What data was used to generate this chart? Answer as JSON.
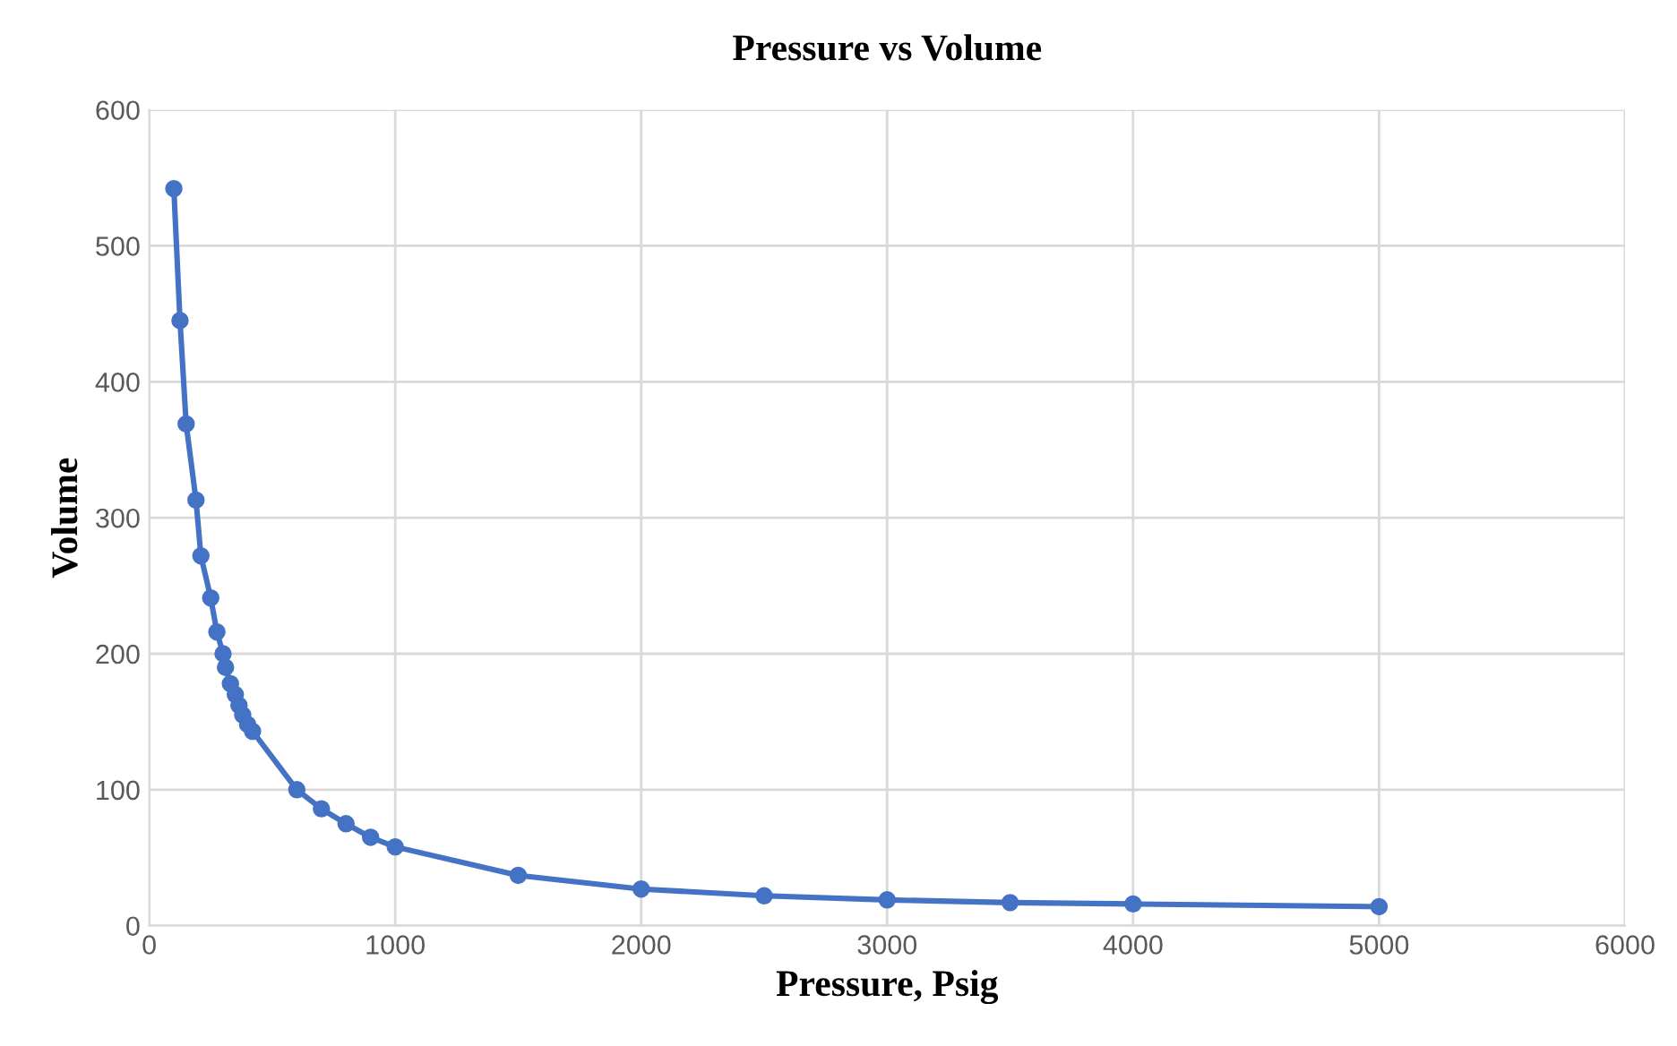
{
  "chart_data": {
    "type": "line",
    "title": "Pressure vs Volume",
    "xlabel": "Pressure, Psig",
    "ylabel": "Volume",
    "x": [
      100,
      125,
      150,
      190,
      210,
      250,
      275,
      300,
      310,
      330,
      350,
      365,
      380,
      400,
      420,
      600,
      700,
      800,
      900,
      1000,
      1500,
      2000,
      2500,
      3000,
      3500,
      4000,
      5000
    ],
    "series": [
      {
        "color": "#4472c4",
        "values": [
          542,
          445,
          369,
          313,
          272,
          241,
          216,
          200,
          190,
          178,
          170,
          162,
          155,
          148,
          143,
          100,
          86,
          75,
          65,
          58,
          37,
          27,
          22,
          19,
          17,
          16,
          14
        ]
      }
    ],
    "xlim": [
      0,
      6000
    ],
    "xticks": [
      0,
      1000,
      2000,
      3000,
      4000,
      5000,
      6000
    ],
    "ylim": [
      0,
      600
    ],
    "yticks": [
      0,
      100,
      200,
      300,
      400,
      500,
      600
    ],
    "grid": true,
    "marker": "circle",
    "line_style": "solid"
  }
}
